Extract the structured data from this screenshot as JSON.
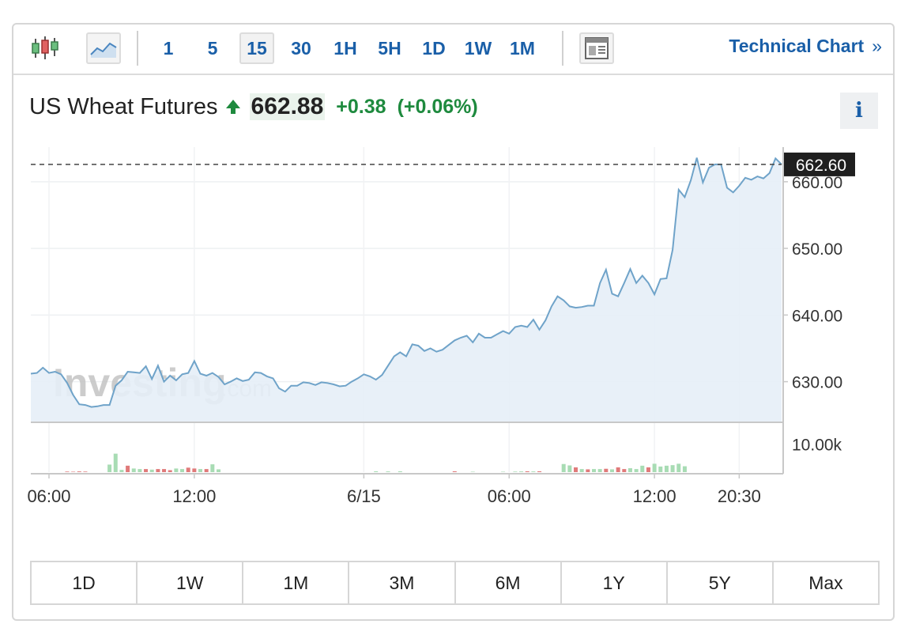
{
  "toolbar": {
    "chart_type_icons": [
      "candlestick-icon",
      "area-chart-icon"
    ],
    "intervals": [
      "1",
      "5",
      "15",
      "30",
      "1H",
      "5H",
      "1D",
      "1W",
      "1M"
    ],
    "selected_interval": "15",
    "layout_icon": "layout-icon",
    "technical_chart_label": "Technical Chart",
    "technical_chart_chevron": "»"
  },
  "header": {
    "name": "US Wheat Futures",
    "direction_icon": "arrow-up-icon",
    "price": "662.88",
    "change": "+0.38",
    "change_pct": "(+0.06%)",
    "info_label": "i"
  },
  "watermark": {
    "brand": "Investing",
    "suffix": ".com"
  },
  "ranges": [
    "1D",
    "1W",
    "1M",
    "3M",
    "6M",
    "1Y",
    "5Y",
    "Max"
  ],
  "colors": {
    "accent": "#1a5fa8",
    "up": "#1e8a3e",
    "line": "#6fa3c9",
    "area": "#e6eef7",
    "vol_up": "#a8dcb4",
    "vol_down": "#e07a7a",
    "last_price_bg": "#1f1f1f"
  },
  "chart_data": {
    "type": "area",
    "y_ticks": [
      "660.00",
      "650.00",
      "640.00",
      "630.00"
    ],
    "y_tick_values": [
      660,
      650,
      640,
      630
    ],
    "ylim": [
      623.9,
      665.2
    ],
    "x_ticks": [
      {
        "label": "06:00",
        "index": 3
      },
      {
        "label": "12:00",
        "index": 27
      },
      {
        "label": "6/15",
        "index": 55
      },
      {
        "label": "06:00",
        "index": 79
      },
      {
        "label": "12:00",
        "index": 103
      },
      {
        "label": "20:30",
        "index": 117
      }
    ],
    "last_price_label": "662.60",
    "last_price_value": 662.6,
    "price": [
      631.2,
      631.3,
      632.1,
      631.3,
      631.5,
      631.1,
      629.8,
      628.0,
      626.6,
      626.5,
      626.2,
      626.3,
      626.5,
      626.5,
      629.4,
      630.2,
      631.5,
      631.4,
      631.3,
      632.3,
      630.4,
      632.4,
      630.0,
      630.9,
      630.2,
      631.1,
      631.3,
      633.1,
      631.2,
      630.9,
      631.3,
      630.7,
      629.6,
      630.0,
      630.5,
      630.1,
      630.3,
      631.4,
      631.3,
      630.8,
      630.5,
      629.0,
      628.5,
      629.4,
      629.4,
      629.9,
      629.8,
      629.5,
      629.9,
      629.8,
      629.6,
      629.3,
      629.4,
      630.0,
      630.5,
      631.1,
      630.8,
      630.3,
      631.0,
      632.4,
      633.8,
      634.4,
      633.8,
      635.6,
      635.4,
      634.6,
      635.0,
      634.5,
      634.8,
      635.5,
      636.2,
      636.6,
      636.9,
      635.9,
      637.2,
      636.6,
      636.6,
      637.1,
      637.6,
      637.2,
      638.2,
      638.4,
      638.2,
      639.3,
      637.8,
      639.2,
      641.3,
      642.8,
      642.2,
      641.3,
      641.1,
      641.2,
      641.4,
      641.4,
      644.8,
      646.8,
      643.2,
      642.8,
      644.8,
      646.9,
      644.8,
      645.9,
      644.8,
      643.1,
      645.4,
      645.5,
      649.8,
      658.8,
      657.7,
      660.2,
      663.6,
      659.9,
      662.1,
      662.6,
      662.6,
      659.1,
      658.4,
      659.4,
      660.6,
      660.3,
      660.8,
      660.5,
      661.3,
      663.5,
      662.6
    ],
    "volume": [
      0,
      0,
      0,
      0,
      0,
      0,
      0,
      0,
      0,
      0,
      0,
      0,
      0,
      0,
      0,
      0,
      0,
      0,
      0,
      0,
      0,
      0,
      0,
      0,
      0,
      0,
      0,
      0,
      0,
      0,
      0,
      0,
      0,
      0,
      0,
      0,
      0,
      0,
      0,
      0,
      0,
      0,
      0,
      0,
      0,
      0,
      0,
      0,
      0,
      0,
      0,
      0,
      0,
      0,
      0,
      0,
      0,
      0,
      0,
      0,
      0,
      0,
      0,
      0,
      0,
      0,
      0,
      0,
      0,
      0,
      0,
      0,
      0,
      0,
      0,
      0,
      0,
      0,
      0,
      0,
      0,
      0,
      0,
      0,
      0,
      0,
      0,
      0,
      0,
      0,
      0,
      0,
      0,
      0,
      0,
      0,
      0,
      0,
      0,
      0,
      0,
      0,
      0,
      0,
      0,
      0,
      0,
      0,
      0,
      0,
      0,
      0,
      0,
      0,
      0,
      0,
      0,
      0,
      0,
      0,
      0,
      0,
      0,
      0,
      0
    ],
    "volume_ticks": [
      "10.00k"
    ],
    "volume_tick_values": [
      10000
    ],
    "volume_max": 13000,
    "volume_bars": [
      {
        "i": 6,
        "v": 200,
        "up": false
      },
      {
        "i": 7,
        "v": 150,
        "up": false
      },
      {
        "i": 8,
        "v": 250,
        "up": false
      },
      {
        "i": 9,
        "v": 200,
        "up": false
      },
      {
        "i": 13,
        "v": 2700,
        "up": true
      },
      {
        "i": 14,
        "v": 6600,
        "up": true
      },
      {
        "i": 15,
        "v": 800,
        "up": true
      },
      {
        "i": 16,
        "v": 2300,
        "up": false
      },
      {
        "i": 17,
        "v": 1300,
        "up": true
      },
      {
        "i": 18,
        "v": 1100,
        "up": true
      },
      {
        "i": 19,
        "v": 1100,
        "up": false
      },
      {
        "i": 20,
        "v": 900,
        "up": true
      },
      {
        "i": 21,
        "v": 1100,
        "up": false
      },
      {
        "i": 22,
        "v": 1100,
        "up": false
      },
      {
        "i": 23,
        "v": 700,
        "up": false
      },
      {
        "i": 24,
        "v": 1300,
        "up": true
      },
      {
        "i": 25,
        "v": 1100,
        "up": true
      },
      {
        "i": 26,
        "v": 1600,
        "up": false
      },
      {
        "i": 27,
        "v": 1300,
        "up": false
      },
      {
        "i": 28,
        "v": 1100,
        "up": true
      },
      {
        "i": 29,
        "v": 1100,
        "up": false
      },
      {
        "i": 30,
        "v": 2800,
        "up": true
      },
      {
        "i": 31,
        "v": 1000,
        "up": true
      },
      {
        "i": 57,
        "v": 300,
        "up": true
      },
      {
        "i": 59,
        "v": 250,
        "up": true
      },
      {
        "i": 61,
        "v": 300,
        "up": true
      },
      {
        "i": 70,
        "v": 300,
        "up": false
      },
      {
        "i": 73,
        "v": 150,
        "up": true
      },
      {
        "i": 78,
        "v": 150,
        "up": true
      },
      {
        "i": 80,
        "v": 200,
        "up": true
      },
      {
        "i": 81,
        "v": 250,
        "up": true
      },
      {
        "i": 82,
        "v": 300,
        "up": false
      },
      {
        "i": 83,
        "v": 250,
        "up": true
      },
      {
        "i": 84,
        "v": 300,
        "up": false
      },
      {
        "i": 88,
        "v": 2900,
        "up": true
      },
      {
        "i": 89,
        "v": 2400,
        "up": true
      },
      {
        "i": 90,
        "v": 1700,
        "up": false
      },
      {
        "i": 91,
        "v": 1100,
        "up": true
      },
      {
        "i": 92,
        "v": 1000,
        "up": false
      },
      {
        "i": 93,
        "v": 1100,
        "up": true
      },
      {
        "i": 94,
        "v": 1100,
        "up": true
      },
      {
        "i": 95,
        "v": 1200,
        "up": false
      },
      {
        "i": 96,
        "v": 1000,
        "up": true
      },
      {
        "i": 97,
        "v": 1700,
        "up": false
      },
      {
        "i": 98,
        "v": 1100,
        "up": false
      },
      {
        "i": 99,
        "v": 1400,
        "up": true
      },
      {
        "i": 100,
        "v": 1100,
        "up": true
      },
      {
        "i": 101,
        "v": 2300,
        "up": true
      },
      {
        "i": 102,
        "v": 1700,
        "up": false
      },
      {
        "i": 103,
        "v": 3000,
        "up": true
      },
      {
        "i": 104,
        "v": 2000,
        "up": true
      },
      {
        "i": 105,
        "v": 2300,
        "up": true
      },
      {
        "i": 106,
        "v": 2500,
        "up": true
      },
      {
        "i": 107,
        "v": 3000,
        "up": true
      },
      {
        "i": 108,
        "v": 2100,
        "up": true
      }
    ],
    "grid": true
  }
}
